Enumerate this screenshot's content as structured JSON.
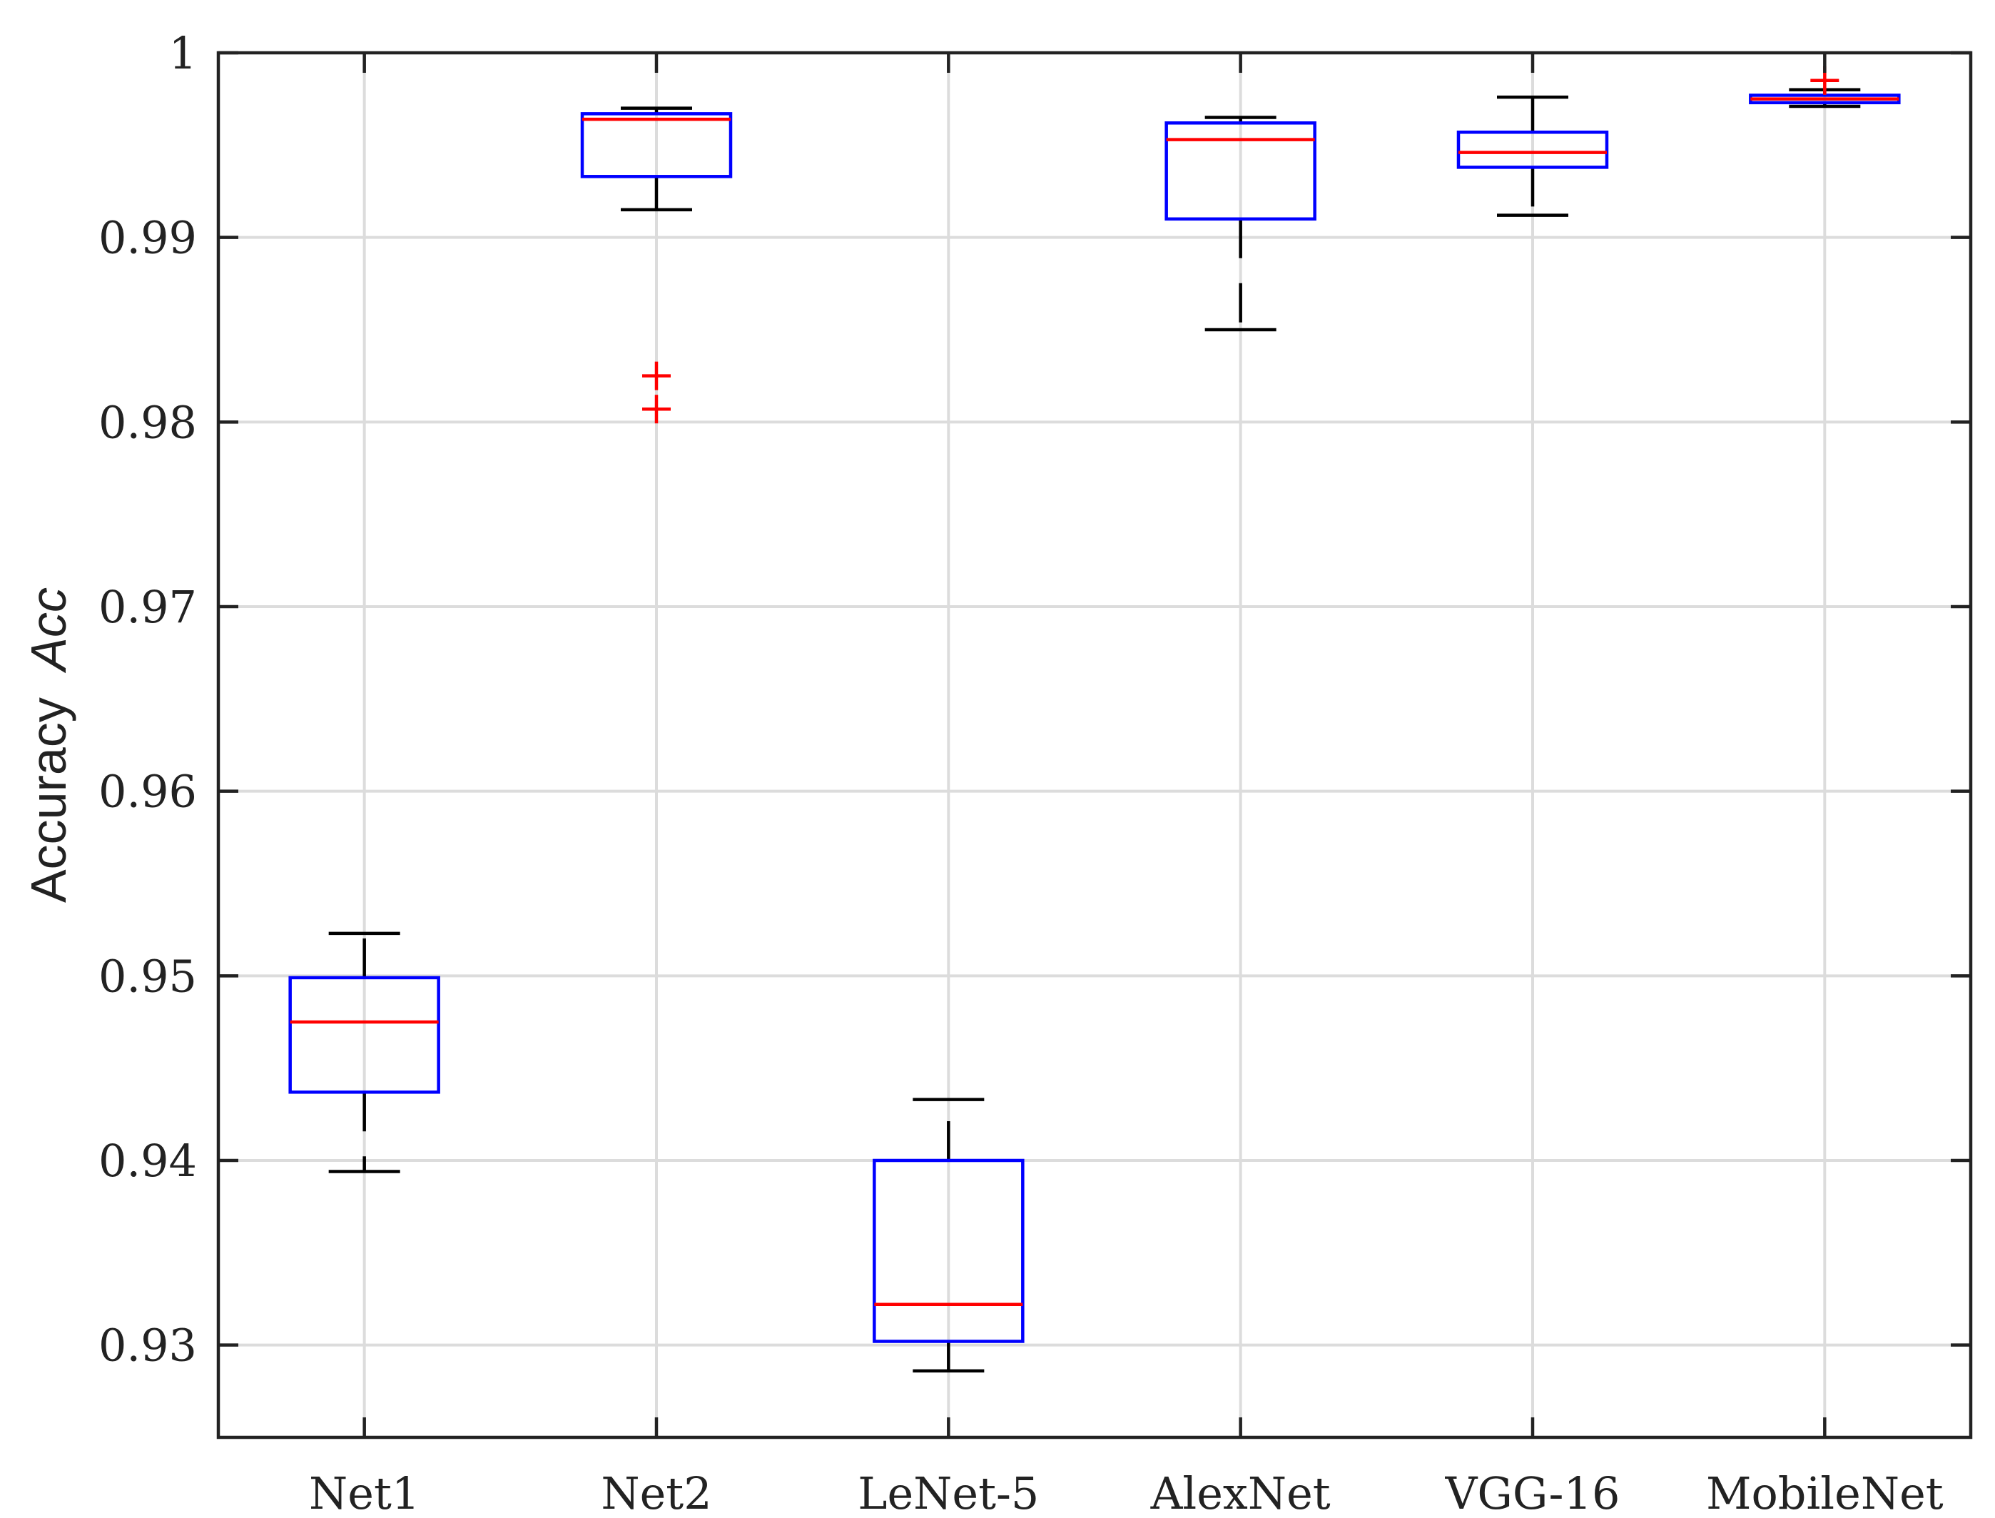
{
  "chart_data": {
    "type": "box",
    "title": "",
    "xlabel": "",
    "ylabel": "Accuracy",
    "ylabel_italic": "Acc",
    "ylim": [
      0.925,
      1.0
    ],
    "yticks": [
      0.93,
      0.94,
      0.95,
      0.96,
      0.97,
      0.98,
      0.99,
      1.0
    ],
    "ytick_labels": [
      "0.93",
      "0.94",
      "0.95",
      "0.96",
      "0.97",
      "0.98",
      "0.99",
      "1"
    ],
    "grid": true,
    "categories": [
      "Net1",
      "Net2",
      "LeNet-5",
      "AlexNet",
      "VGG-16",
      "MobileNet"
    ],
    "boxes": [
      {
        "name": "Net1",
        "whisker_low": 0.9394,
        "q1": 0.9437,
        "median": 0.9475,
        "q3": 0.9499,
        "whisker_high": 0.9523,
        "outliers": []
      },
      {
        "name": "Net2",
        "whisker_low": 0.9915,
        "q1": 0.9933,
        "median": 0.9964,
        "q3": 0.9967,
        "whisker_high": 0.997,
        "outliers": [
          0.9825,
          0.9807
        ]
      },
      {
        "name": "LeNet-5",
        "whisker_low": 0.9286,
        "q1": 0.9302,
        "median": 0.9322,
        "q3": 0.94,
        "whisker_high": 0.9433,
        "outliers": []
      },
      {
        "name": "AlexNet",
        "whisker_low": 0.985,
        "q1": 0.991,
        "median": 0.9953,
        "q3": 0.9962,
        "whisker_high": 0.9965,
        "outliers": []
      },
      {
        "name": "VGG-16",
        "whisker_low": 0.9912,
        "q1": 0.9938,
        "median": 0.9946,
        "q3": 0.9957,
        "whisker_high": 0.9976,
        "outliers": []
      },
      {
        "name": "MobileNet",
        "whisker_low": 0.9971,
        "q1": 0.9973,
        "median": 0.9975,
        "q3": 0.9977,
        "whisker_high": 0.998,
        "outliers": [
          0.9985
        ]
      }
    ],
    "colors": {
      "box": "#0000ff",
      "median": "#ff0000",
      "whisker": "#000000",
      "outlier": "#ff0000",
      "grid": "#dcdcdc",
      "axis": "#222222"
    }
  }
}
